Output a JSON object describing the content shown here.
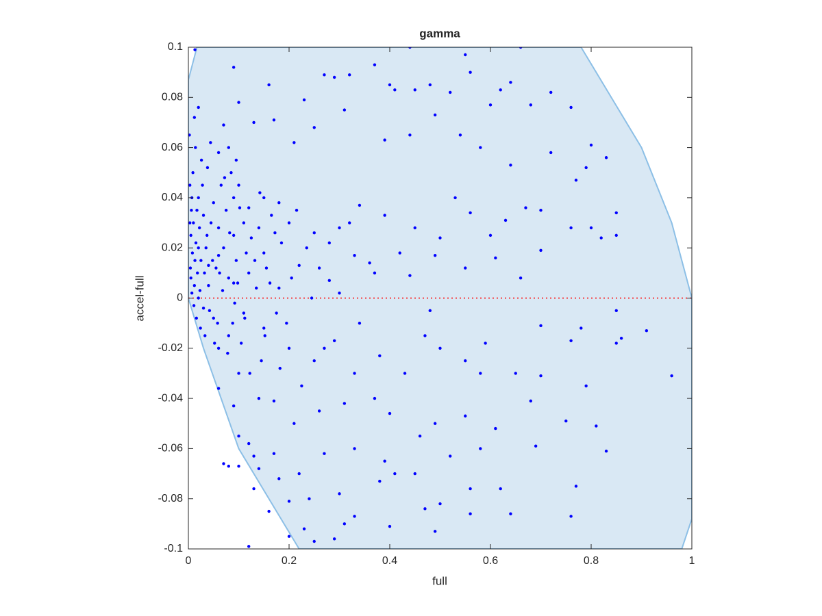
{
  "chart_data": {
    "type": "scatter",
    "title": "gamma",
    "x_label": "full",
    "y_label": "accel-full",
    "color": "#0000ff",
    "region": {
      "color": "#d9e8f4",
      "edge_color": "#8cbfe6",
      "x": [
        0,
        0.017,
        0.78,
        0.9,
        0.96,
        1,
        1,
        0.98,
        0.22,
        0.1,
        0.03,
        0
      ],
      "y": [
        0.087,
        0.1,
        0.1,
        0.06,
        0.03,
        0,
        -0.088,
        -0.1,
        -0.1,
        -0.06,
        -0.02,
        0
      ]
    },
    "hline": {
      "value": 0,
      "color": "#ff0000"
    },
    "xlim": [
      0,
      1
    ],
    "ylim": [
      -0.1,
      0.1
    ],
    "xticks": [
      0,
      0.2,
      0.4,
      0.6,
      0.8,
      1
    ],
    "yticks": [
      -0.1,
      -0.08,
      -0.06,
      -0.04,
      -0.02,
      0,
      0.02,
      0.04,
      0.06,
      0.08,
      0.1
    ],
    "grid": false,
    "x": [
      0.013,
      0.09,
      0.44,
      0.66,
      0.55,
      0.23,
      0.16,
      0.27,
      0.29,
      0.32,
      0.37,
      0.4,
      0.41,
      0.45,
      0.48,
      0.52,
      0.56,
      0.62,
      0.64,
      0.6,
      0.68,
      0.72,
      0.76,
      0.1,
      0.02,
      0.07,
      0.13,
      0.17,
      0.21,
      0.25,
      0.31,
      0.39,
      0.44,
      0.49,
      0.54,
      0.58,
      0.64,
      0.72,
      0.8,
      0.83,
      0.79,
      0.77,
      0.8,
      0.82,
      0.85,
      0.85,
      0.76,
      0.7,
      0.67,
      0.63,
      0.6,
      0.56,
      0.5,
      0.45,
      0.39,
      0.34,
      0.3,
      0.25,
      0.2,
      0.18,
      0.15,
      0.12,
      0.09,
      0.7,
      0.66,
      0.61,
      0.55,
      0.49,
      0.44,
      0.37,
      0.33,
      0.28,
      0.22,
      0.18,
      0.15,
      0.12,
      0.09,
      0.06,
      0.04,
      0.02,
      0.85,
      0.85,
      0.86,
      0.91,
      0.96,
      0.76,
      0.78,
      0.7,
      0.7,
      0.65,
      0.58,
      0.59,
      0.55,
      0.5,
      0.47,
      0.43,
      0.38,
      0.33,
      0.29,
      0.25,
      0.2,
      0.15,
      0.11,
      0.08,
      0.05,
      0.03,
      0.06,
      0.1,
      0.14,
      0.09,
      0.06,
      0.17,
      0.21,
      0.26,
      0.31,
      0.37,
      0.4,
      0.46,
      0.49,
      0.55,
      0.61,
      0.68,
      0.75,
      0.81,
      0.83,
      0.79,
      0.69,
      0.58,
      0.52,
      0.45,
      0.39,
      0.33,
      0.27,
      0.22,
      0.17,
      0.14,
      0.1,
      0.08,
      0.07,
      0.13,
      0.12,
      0.1,
      0.18,
      0.24,
      0.3,
      0.38,
      0.41,
      0.47,
      0.5,
      0.56,
      0.56,
      0.62,
      0.64,
      0.76,
      0.77,
      0.49,
      0.4,
      0.33,
      0.31,
      0.29,
      0.25,
      0.23,
      0.2,
      0.2,
      0.12,
      0.16,
      0.13,
      0.005,
      0.008,
      0.01,
      0.004,
      0.012,
      0.006,
      0.015,
      0.02,
      0.003,
      0.018,
      0.022,
      0.025,
      0.009,
      0.014,
      0.03,
      0.035,
      0.028,
      0.04,
      0.045,
      0.05,
      0.038,
      0.055,
      0.06,
      0.065,
      0.07,
      0.075,
      0.08,
      0.085,
      0.09,
      0.095,
      0.1,
      0.11,
      0.007,
      0.011,
      0.016,
      0.02,
      0.024,
      0.032,
      0.042,
      0.048,
      0.058,
      0.068,
      0.078,
      0.088,
      0.098,
      0.105,
      0.115,
      0.125,
      0.135,
      0.14,
      0.145,
      0.155,
      0.165,
      0.175,
      0.185,
      0.002,
      0.012,
      0.026,
      0.044,
      0.06,
      0.08,
      0.095,
      0.003,
      0.005,
      0.007,
      0.013,
      0.017,
      0.023,
      0.033,
      0.037,
      0.052,
      0.062,
      0.072,
      0.082,
      0.092,
      0.102,
      0.112,
      0.122,
      0.132,
      0.142,
      0.152,
      0.162,
      0.172,
      0.182,
      0.195,
      0.205,
      0.215,
      0.225,
      0.235,
      0.245,
      0.26,
      0.27,
      0.28,
      0.3,
      0.32,
      0.34,
      0.36,
      0.42,
      0.48,
      0.53
    ],
    "values": [
      0.099,
      0.092,
      0.1,
      0.1,
      0.097,
      0.079,
      0.085,
      0.089,
      0.088,
      0.089,
      0.093,
      0.085,
      0.083,
      0.083,
      0.085,
      0.082,
      0.09,
      0.083,
      0.086,
      0.077,
      0.077,
      0.082,
      0.076,
      0.078,
      0.076,
      0.069,
      0.07,
      0.071,
      0.062,
      0.068,
      0.075,
      0.063,
      0.065,
      0.073,
      0.065,
      0.06,
      0.053,
      0.058,
      0.061,
      0.056,
      0.052,
      0.047,
      0.028,
      0.024,
      0.034,
      0.025,
      0.028,
      0.035,
      0.036,
      0.031,
      0.025,
      0.034,
      0.024,
      0.028,
      0.033,
      0.037,
      0.028,
      0.026,
      0.03,
      0.038,
      0.04,
      0.036,
      0.04,
      0.019,
      0.008,
      0.016,
      0.012,
      0.017,
      0.009,
      0.01,
      0.017,
      0.007,
      0.013,
      0.004,
      0.018,
      0.01,
      0.006,
      0.017,
      0.013,
      0.02,
      -0.005,
      -0.018,
      -0.016,
      -0.013,
      -0.031,
      -0.017,
      -0.012,
      -0.011,
      -0.031,
      -0.03,
      -0.03,
      -0.018,
      -0.025,
      -0.02,
      -0.015,
      -0.03,
      -0.023,
      -0.03,
      -0.017,
      -0.025,
      -0.02,
      -0.012,
      -0.006,
      -0.015,
      -0.008,
      -0.004,
      -0.02,
      -0.03,
      -0.04,
      -0.043,
      -0.036,
      -0.041,
      -0.05,
      -0.045,
      -0.042,
      -0.04,
      -0.046,
      -0.055,
      -0.05,
      -0.047,
      -0.052,
      -0.041,
      -0.049,
      -0.051,
      -0.061,
      -0.035,
      -0.059,
      -0.06,
      -0.063,
      -0.07,
      -0.065,
      -0.06,
      -0.062,
      -0.07,
      -0.062,
      -0.068,
      -0.067,
      -0.067,
      -0.066,
      -0.063,
      -0.058,
      -0.055,
      -0.072,
      -0.08,
      -0.078,
      -0.073,
      -0.07,
      -0.084,
      -0.082,
      -0.086,
      -0.076,
      -0.076,
      -0.086,
      -0.087,
      -0.075,
      -0.093,
      -0.091,
      -0.087,
      -0.09,
      -0.096,
      -0.097,
      -0.092,
      -0.081,
      -0.095,
      -0.099,
      -0.085,
      -0.076,
      0.025,
      0.018,
      0.03,
      0.012,
      0.005,
      0.035,
      0.022,
      0.04,
      0.045,
      0.01,
      0.028,
      0.015,
      0.05,
      0.06,
      0.033,
      0.02,
      0.045,
      0.005,
      0.03,
      0.038,
      0.052,
      0.012,
      0.028,
      0.045,
      0.02,
      0.035,
      0.008,
      0.05,
      0.025,
      0.015,
      0.045,
      0.03,
      0.002,
      -0.003,
      -0.008,
      0,
      -0.012,
      0.01,
      -0.005,
      0.015,
      -0.01,
      0.003,
      -0.022,
      -0.01,
      0.006,
      -0.018,
      0.018,
      0.024,
      0.004,
      0.028,
      -0.025,
      0.012,
      0.033,
      -0.006,
      0.022,
      0.065,
      0.072,
      0.055,
      0.062,
      0.058,
      0.06,
      0.055,
      0.03,
      0.008,
      0.04,
      0.015,
      0.035,
      0.003,
      -0.015,
      0.025,
      -0.018,
      0.01,
      0.048,
      0.026,
      -0.002,
      0.036,
      -0.008,
      -0.03,
      0.015,
      0.042,
      -0.015,
      0.006,
      0.026,
      -0.028,
      -0.01,
      0.008,
      0.035,
      -0.035,
      0.02,
      0,
      0.012,
      -0.02,
      0.022,
      0.002,
      0.03,
      -0.01,
      0.014,
      0.018,
      -0.005,
      0.04
    ]
  }
}
